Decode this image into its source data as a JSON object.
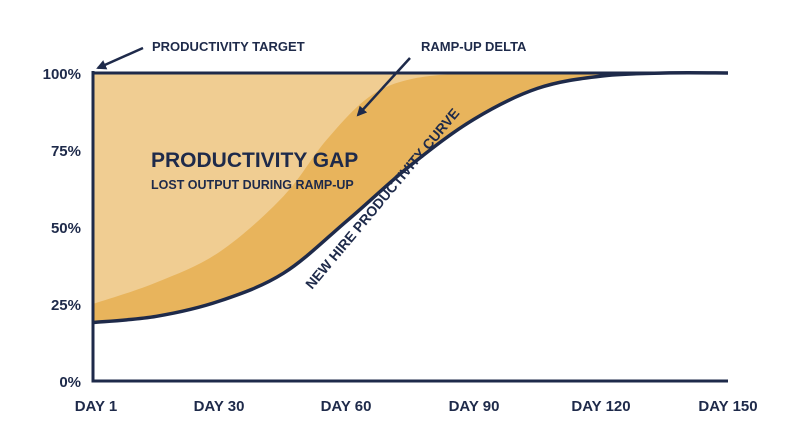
{
  "chart_data": {
    "type": "area",
    "x_tick_labels": [
      "DAY 1",
      "DAY 30",
      "DAY 60",
      "DAY 90",
      "DAY 120",
      "DAY 150"
    ],
    "y_tick_labels": [
      "0%",
      "25%",
      "50%",
      "75%",
      "100%"
    ],
    "xlim": [
      0,
      150
    ],
    "ylim": [
      0,
      100
    ],
    "grid": false,
    "series": [
      {
        "name": "PRODUCTIVITY TARGET",
        "x": [
          0,
          150
        ],
        "y": [
          100,
          100
        ]
      },
      {
        "name": "NEW HIRE PRODUCTIVITY CURVE",
        "x": [
          0,
          15,
          30,
          45,
          60,
          75,
          90,
          105,
          120,
          135,
          150
        ],
        "y": [
          19,
          21,
          26,
          35,
          52,
          70,
          85,
          95,
          99,
          100,
          100
        ]
      }
    ],
    "delta_curve": {
      "x": [
        0,
        15,
        30,
        45,
        55,
        65,
        75,
        90,
        105,
        120,
        150
      ],
      "y": [
        25,
        32,
        42,
        60,
        78,
        92,
        98,
        100,
        100,
        100,
        100
      ]
    },
    "annotations": {
      "target": "PRODUCTIVITY TARGET",
      "delta": "RAMP-UP DELTA",
      "gap_title": "PRODUCTIVITY GAP",
      "gap_subtitle": "LOST OUTPUT DURING RAMP-UP",
      "curve": "NEW HIRE PRODUCTIVITY CURVE"
    },
    "colors": {
      "ink": "#1e2a4a",
      "gap_fill": "#e8b45c",
      "delta_fill": "#f0cd92",
      "background": "#ffffff"
    }
  }
}
